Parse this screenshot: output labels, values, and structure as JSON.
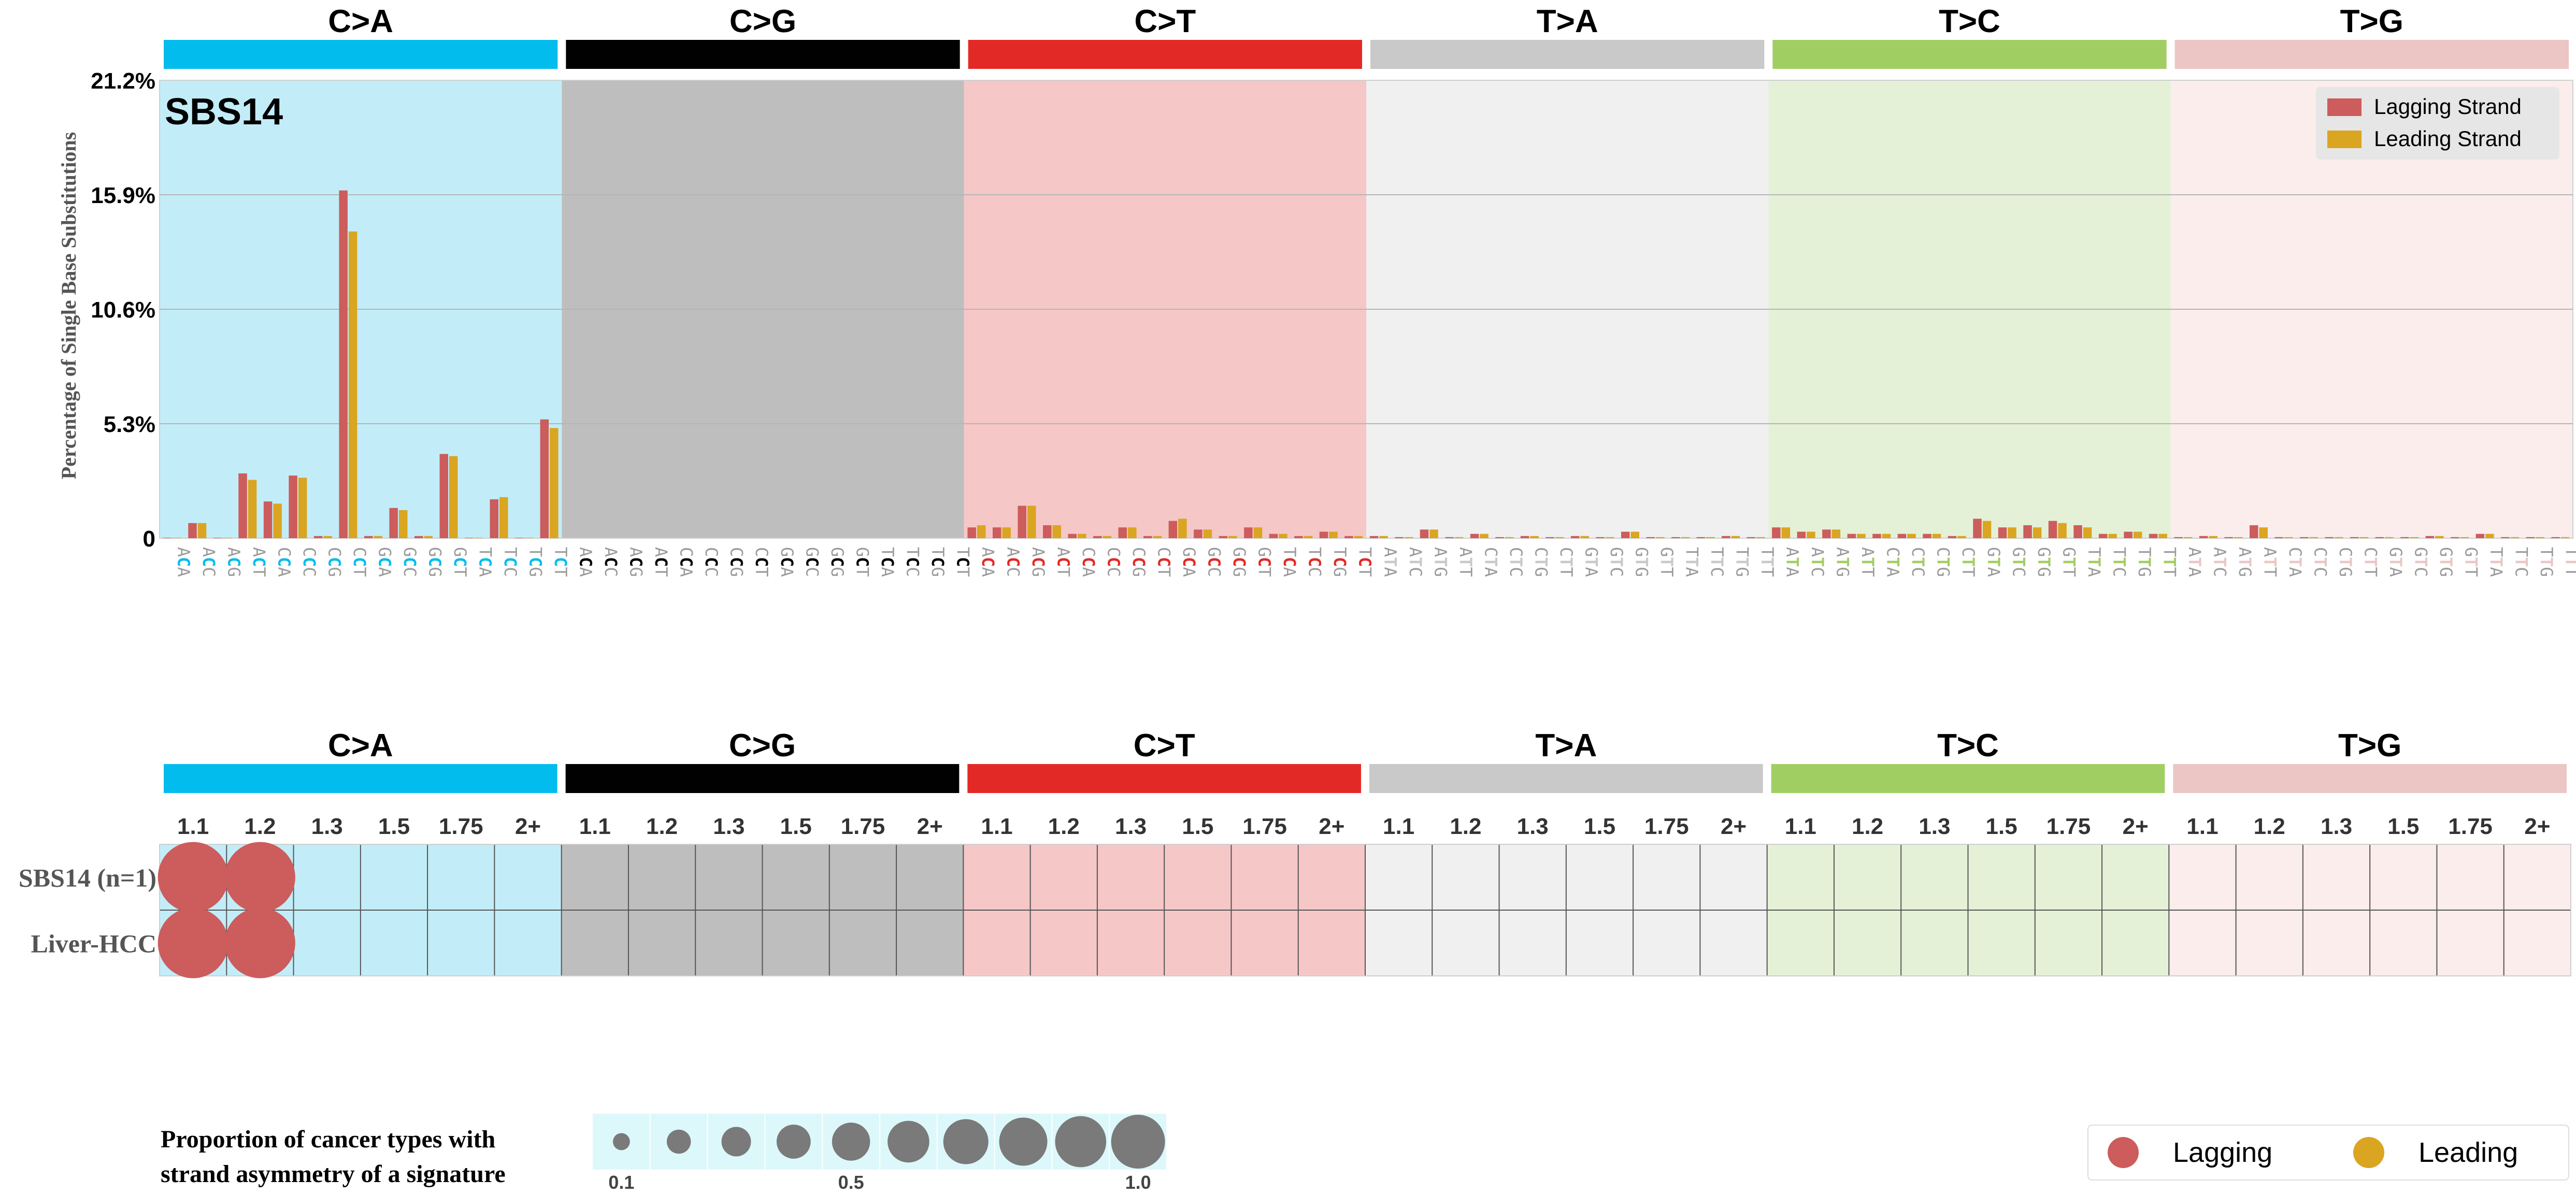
{
  "mutation_types": [
    {
      "label": "C>A",
      "color": "#03BCEE",
      "bg": "#C2EDF8"
    },
    {
      "label": "C>G",
      "color": "#010101",
      "bg": "#BEBEBE"
    },
    {
      "label": "C>T",
      "color": "#E32926",
      "bg": "#F6C7C7"
    },
    {
      "label": "T>A",
      "color": "#CAC9C9",
      "bg": "#F0F0F0"
    },
    {
      "label": "T>C",
      "color": "#A1CE63",
      "bg": "#E4F1D6"
    },
    {
      "label": "T>G",
      "color": "#EBC6C4",
      "bg": "#FAEDEC"
    }
  ],
  "chart_data": [
    {
      "type": "bar",
      "title": "SBS14",
      "ylabel": "Percentage of Single Base Substitutions",
      "ylim": [
        0,
        21.2
      ],
      "yticks": [
        "0",
        "5.3%",
        "10.6%",
        "15.9%",
        "21.2%"
      ],
      "grid": true,
      "legend_position": "top-right",
      "series": [
        {
          "name": "Lagging Strand",
          "color": "#CD5C5C",
          "values": [
            0.02,
            0.7,
            0.02,
            3.0,
            1.7,
            2.9,
            0.1,
            16.1,
            0.1,
            1.4,
            0.1,
            3.9,
            0.02,
            1.8,
            0.02,
            5.5,
            0,
            0,
            0,
            0,
            0,
            0,
            0,
            0,
            0,
            0,
            0,
            0,
            0,
            0,
            0,
            0,
            0.5,
            0.5,
            1.5,
            0.6,
            0.2,
            0.1,
            0.5,
            0.1,
            0.8,
            0.4,
            0.1,
            0.5,
            0.2,
            0.1,
            0.3,
            0.1,
            0.1,
            0.05,
            0.4,
            0.05,
            0.2,
            0.05,
            0.1,
            0.05,
            0.1,
            0.05,
            0.3,
            0.05,
            0.05,
            0.05,
            0.1,
            0.05,
            0.5,
            0.3,
            0.4,
            0.2,
            0.2,
            0.2,
            0.2,
            0.1,
            0.9,
            0.5,
            0.6,
            0.8,
            0.6,
            0.2,
            0.3,
            0.2,
            0.05,
            0.1,
            0.05,
            0.6,
            0.05,
            0.05,
            0.05,
            0.05,
            0.05,
            0.05,
            0.1,
            0.05,
            0.2,
            0.05,
            0.05,
            0.05
          ]
        },
        {
          "name": "Leading Strand",
          "color": "#DAA520",
          "values": [
            0.02,
            0.7,
            0.02,
            2.7,
            1.6,
            2.8,
            0.1,
            14.2,
            0.1,
            1.3,
            0.1,
            3.8,
            0.02,
            1.9,
            0.02,
            5.1,
            0,
            0,
            0,
            0,
            0,
            0,
            0,
            0,
            0,
            0,
            0,
            0,
            0,
            0,
            0,
            0,
            0.6,
            0.5,
            1.5,
            0.6,
            0.2,
            0.1,
            0.5,
            0.1,
            0.9,
            0.4,
            0.1,
            0.5,
            0.2,
            0.1,
            0.3,
            0.1,
            0.1,
            0.05,
            0.4,
            0.05,
            0.2,
            0.05,
            0.1,
            0.05,
            0.1,
            0.05,
            0.3,
            0.05,
            0.05,
            0.05,
            0.1,
            0.05,
            0.5,
            0.3,
            0.4,
            0.2,
            0.2,
            0.2,
            0.2,
            0.1,
            0.8,
            0.5,
            0.5,
            0.7,
            0.5,
            0.2,
            0.3,
            0.2,
            0.05,
            0.1,
            0.05,
            0.5,
            0.05,
            0.05,
            0.05,
            0.05,
            0.05,
            0.05,
            0.1,
            0.05,
            0.2,
            0.05,
            0.05,
            0.05
          ]
        }
      ]
    },
    {
      "type": "scatter",
      "columns": [
        "1.1",
        "1.2",
        "1.3",
        "1.5",
        "1.75",
        "2+"
      ],
      "rows": [
        "SBS14 (n=1)",
        "Liver-HCC"
      ],
      "points": [
        {
          "row": 0,
          "group": 0,
          "col": 0,
          "proportion": 1.0,
          "strand": "Lagging"
        },
        {
          "row": 0,
          "group": 0,
          "col": 1,
          "proportion": 1.0,
          "strand": "Lagging"
        },
        {
          "row": 1,
          "group": 0,
          "col": 0,
          "proportion": 1.0,
          "strand": "Lagging"
        },
        {
          "row": 1,
          "group": 0,
          "col": 1,
          "proportion": 1.0,
          "strand": "Lagging"
        }
      ],
      "size_legend": {
        "title_line1": "Proportion of cancer types with",
        "title_line2": "strand asymmetry of a signature",
        "values": [
          0.1,
          0.2,
          0.3,
          0.4,
          0.5,
          0.6,
          0.7,
          0.8,
          0.9,
          1.0
        ],
        "labels": [
          "0.1",
          "0.5",
          "1.0"
        ]
      },
      "color_legend": [
        {
          "label": "Lagging",
          "color": "#CD5C5C"
        },
        {
          "label": "Leading",
          "color": "#DAA520"
        }
      ]
    }
  ]
}
